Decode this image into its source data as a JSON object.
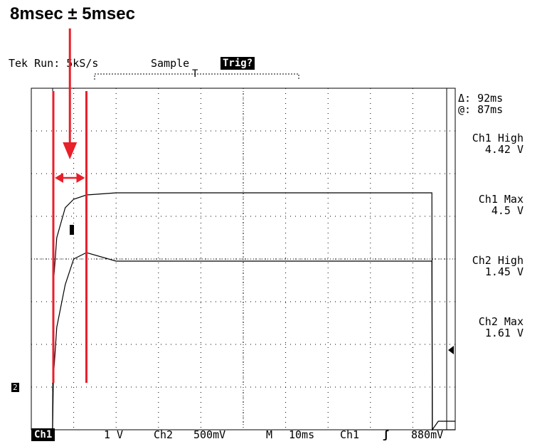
{
  "annotation": {
    "title": "8msec ± 5msec"
  },
  "header": {
    "status": "Tek Run: 5kS/s",
    "mode": "Sample",
    "trigger_state": "Trig?",
    "trigger_position_label": "T"
  },
  "measurements": {
    "delta": "Δ: 92ms",
    "at": "@: 87ms",
    "items": [
      {
        "label": "Ch1 High",
        "value": "4.42 V"
      },
      {
        "label": "Ch1 Max",
        "value": "4.5 V"
      },
      {
        "label": "Ch2 High",
        "value": "1.45 V"
      },
      {
        "label": "Ch2 Max",
        "value": "1.61 V"
      }
    ]
  },
  "footer": {
    "ch1": "Ch1",
    "ch1_scale": "1 V",
    "ch2": "Ch2",
    "ch2_scale": "500mV",
    "timebase_prefix": "M",
    "timebase": "10ms",
    "trigger_source": "Ch1",
    "trigger_level": "880mV"
  },
  "ground_marker": "2",
  "colors": {
    "trace": "#000000",
    "annotation": "#e8202a",
    "grid": "#000000"
  },
  "chart_data": {
    "type": "line",
    "x_unit": "ms",
    "x_per_div": 10,
    "x_divisions": 10,
    "x": [
      0,
      5,
      5.2,
      6,
      8,
      10,
      13,
      20,
      40,
      60,
      80,
      90,
      94.5,
      94.6,
      96,
      100
    ],
    "series": [
      {
        "values_div": [
          -4.2,
          -4.2,
          -0.6,
          0.5,
          1.2,
          1.4,
          1.5,
          1.55,
          1.55,
          1.55,
          1.55,
          1.55,
          1.55,
          -4.0,
          -4.0,
          -4.0
        ]
      },
      {
        "values_div": [
          -4.2,
          -4.2,
          -2.8,
          -1.6,
          -0.6,
          0.0,
          0.15,
          -0.05,
          -0.05,
          -0.05,
          -0.05,
          -0.05,
          -0.05,
          -4.0,
          -3.8,
          -3.8
        ]
      }
    ],
    "markers_ms": [
      5.2,
      13
    ],
    "grid": true
  }
}
